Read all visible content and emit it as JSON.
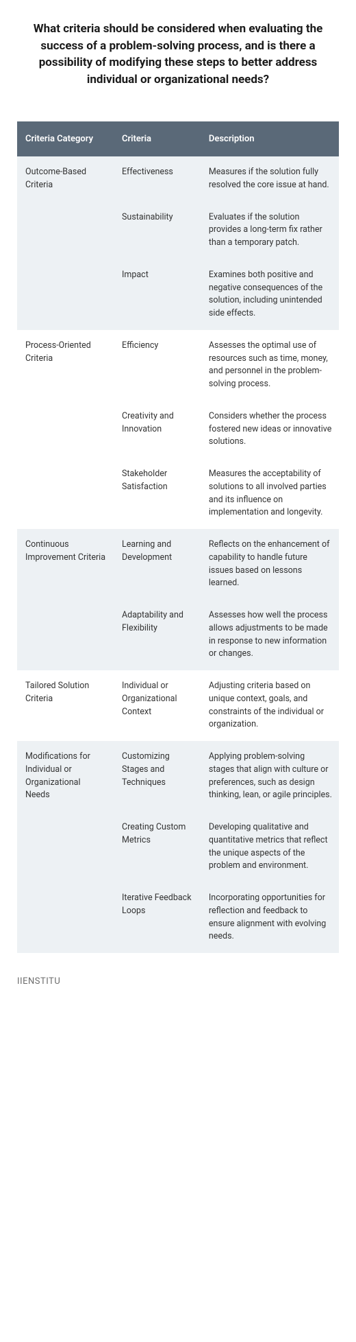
{
  "title": "What criteria should be considered when evaluating the success of a problem-solving process, and is there a possibility of modifying these steps to better address individual or organizational needs?",
  "footer": "IIENSTITU",
  "table": {
    "headers": [
      "Criteria Category",
      "Criteria",
      "Description"
    ],
    "header_bg": "#5a6978",
    "header_fg": "#ffffff",
    "alt_row_bg": "#edf1f4",
    "norm_row_bg": "#ffffff",
    "rows": [
      {
        "category": "Outcome-Based Criteria",
        "span": 3,
        "criteria": "Effectiveness",
        "desc": "Measures if the solution fully resolved the core issue at hand."
      },
      {
        "category": "",
        "criteria": "Sustainability",
        "desc": "Evaluates if the solution provides a long-term fix rather than a temporary patch."
      },
      {
        "category": "",
        "criteria": "Impact",
        "desc": "Examines both positive and negative consequences of the solution, including unintended side effects."
      },
      {
        "category": "Process-Oriented Criteria",
        "span": 3,
        "criteria": "Efficiency",
        "desc": "Assesses the optimal use of resources such as time, money, and personnel in the problem-solving process."
      },
      {
        "category": "",
        "criteria": "Creativity and Innovation",
        "desc": "Considers whether the process fostered new ideas or innovative solutions."
      },
      {
        "category": "",
        "criteria": "Stakeholder Satisfaction",
        "desc": "Measures the acceptability of solutions to all involved parties and its influence on implementation and longevity."
      },
      {
        "category": "Continuous Improvement Criteria",
        "span": 2,
        "criteria": "Learning and Development",
        "desc": "Reflects on the enhancement of capability to handle future issues based on lessons learned."
      },
      {
        "category": "",
        "criteria": "Adaptability and Flexibility",
        "desc": "Assesses how well the process allows adjustments to be made in response to new information or changes."
      },
      {
        "category": "Tailored Solution Criteria",
        "span": 1,
        "criteria": "Individual or Organizational Context",
        "desc": "Adjusting criteria based on unique context, goals, and constraints of the individual or organization."
      },
      {
        "category": "Modifications for Individual or Organizational Needs",
        "span": 3,
        "criteria": "Customizing Stages and Techniques",
        "desc": "Applying problem-solving stages that align with culture or preferences, such as design thinking, lean, or agile principles."
      },
      {
        "category": "",
        "criteria": "Creating Custom Metrics",
        "desc": "Developing qualitative and quantitative metrics that reflect the unique aspects of the problem and environment."
      },
      {
        "category": "",
        "criteria": "Iterative Feedback Loops",
        "desc": "Incorporating opportunities for reflection and feedback to ensure alignment with evolving needs."
      }
    ]
  }
}
